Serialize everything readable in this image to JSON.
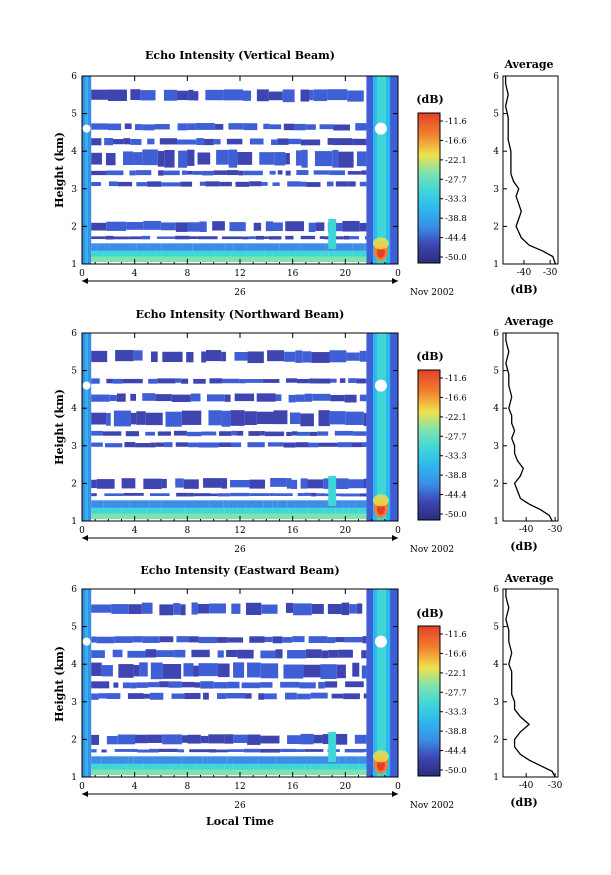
{
  "chart_data": [
    {
      "type": "heatmap",
      "title": "Echo Intensity (Vertical Beam)",
      "ylabel": "Height (km)",
      "xlabel": "",
      "x_ticks": [
        "0",
        "4",
        "8",
        "12",
        "16",
        "20",
        "0"
      ],
      "xlim": [
        0,
        24
      ],
      "ylim": [
        1,
        6
      ],
      "y_ticks": [
        "1",
        "2",
        "3",
        "4",
        "5",
        "6"
      ],
      "date_label": "26",
      "month_label": "Nov 2002",
      "colorbar": {
        "unit": "(dB)",
        "ticks": [
          "-11.6",
          "-16.6",
          "-22.1",
          "-27.7",
          "-33.3",
          "-38.8",
          "-44.4",
          "-50.0"
        ]
      },
      "echo_bands_km": [
        [
          1.1,
          1.35
        ],
        [
          1.35,
          1.55
        ],
        [
          1.65,
          1.75
        ],
        [
          1.85,
          2.15
        ],
        [
          3.05,
          3.2
        ],
        [
          3.35,
          3.5
        ],
        [
          3.55,
          4.05
        ],
        [
          4.15,
          4.35
        ],
        [
          4.55,
          4.75
        ],
        [
          5.3,
          5.65
        ]
      ],
      "average_profile": {
        "title": "Average",
        "xlabel": "(dB)",
        "x_ticks": [
          "-40",
          "-30"
        ],
        "xlim": [
          -48,
          -27
        ],
        "height_km": [
          1.0,
          1.2,
          1.35,
          1.5,
          1.7,
          2.0,
          2.2,
          2.4,
          2.6,
          2.8,
          3.0,
          3.2,
          3.4,
          3.6,
          3.8,
          4.0,
          4.3,
          4.6,
          4.9,
          5.2,
          5.5,
          5.8,
          6.0
        ],
        "db": [
          -28,
          -29,
          -33,
          -38,
          -41,
          -43,
          -42,
          -41,
          -42,
          -43,
          -42,
          -44,
          -45,
          -45,
          -45,
          -45,
          -46,
          -46,
          -46,
          -47,
          -46,
          -47,
          -47
        ]
      }
    },
    {
      "type": "heatmap",
      "title": "Echo Intensity (Northward Beam)",
      "ylabel": "Height (km)",
      "xlabel": "",
      "x_ticks": [
        "0",
        "4",
        "8",
        "12",
        "16",
        "20",
        "0"
      ],
      "xlim": [
        0,
        24
      ],
      "ylim": [
        1,
        6
      ],
      "y_ticks": [
        "1",
        "2",
        "3",
        "4",
        "5",
        "6"
      ],
      "date_label": "26",
      "month_label": "Nov 2002",
      "colorbar": {
        "unit": "(dB)",
        "ticks": [
          "-11.6",
          "-16.6",
          "-22.1",
          "-27.7",
          "-33.3",
          "-38.8",
          "-44.4",
          "-50.0"
        ]
      },
      "echo_bands_km": [
        [
          1.1,
          1.35
        ],
        [
          1.35,
          1.55
        ],
        [
          1.65,
          1.75
        ],
        [
          1.85,
          2.15
        ],
        [
          2.95,
          3.1
        ],
        [
          3.25,
          3.4
        ],
        [
          3.5,
          3.95
        ],
        [
          4.15,
          4.4
        ],
        [
          4.65,
          4.8
        ],
        [
          5.2,
          5.55
        ]
      ],
      "average_profile": {
        "title": "Average",
        "xlabel": "(dB)",
        "x_ticks": [
          "-40",
          "-30"
        ],
        "xlim": [
          -48,
          -29
        ],
        "height_km": [
          1.0,
          1.15,
          1.3,
          1.45,
          1.6,
          1.8,
          2.0,
          2.2,
          2.4,
          2.6,
          2.8,
          3.0,
          3.2,
          3.4,
          3.6,
          3.8,
          4.0,
          4.3,
          4.6,
          4.9,
          5.2,
          5.5,
          5.8,
          6.0
        ],
        "db": [
          -31,
          -32,
          -35,
          -39,
          -42,
          -43,
          -44,
          -42,
          -41,
          -43,
          -44,
          -44,
          -45,
          -44,
          -45,
          -45,
          -46,
          -45,
          -46,
          -46,
          -47,
          -46,
          -47,
          -47
        ]
      }
    },
    {
      "type": "heatmap",
      "title": "Echo Intensity (Eastward Beam)",
      "ylabel": "Height (km)",
      "xlabel": "Local Time",
      "x_ticks": [
        "0",
        "4",
        "8",
        "12",
        "16",
        "20",
        "0"
      ],
      "xlim": [
        0,
        24
      ],
      "ylim": [
        1,
        6
      ],
      "y_ticks": [
        "1",
        "2",
        "3",
        "4",
        "5",
        "6"
      ],
      "date_label": "26",
      "month_label": "Nov 2002",
      "colorbar": {
        "unit": "(dB)",
        "ticks": [
          "-11.6",
          "-16.6",
          "-22.1",
          "-27.7",
          "-33.3",
          "-38.8",
          "-44.4",
          "-50.0"
        ]
      },
      "echo_bands_km": [
        [
          1.1,
          1.35
        ],
        [
          1.35,
          1.55
        ],
        [
          1.65,
          1.75
        ],
        [
          1.85,
          2.15
        ],
        [
          3.05,
          3.25
        ],
        [
          3.35,
          3.55
        ],
        [
          3.6,
          4.05
        ],
        [
          4.15,
          4.4
        ],
        [
          4.55,
          4.75
        ],
        [
          5.3,
          5.65
        ]
      ],
      "average_profile": {
        "title": "Average",
        "xlabel": "(dB)",
        "x_ticks": [
          "-40",
          "-30"
        ],
        "xlim": [
          -48,
          -29
        ],
        "height_km": [
          1.0,
          1.15,
          1.3,
          1.45,
          1.6,
          1.8,
          2.0,
          2.2,
          2.4,
          2.6,
          2.8,
          3.0,
          3.2,
          3.4,
          3.6,
          3.8,
          4.0,
          4.3,
          4.6,
          4.9,
          5.2,
          5.5,
          5.8,
          6.0
        ],
        "db": [
          -30,
          -31,
          -35,
          -39,
          -42,
          -44,
          -44,
          -42,
          -39,
          -42,
          -44,
          -44,
          -45,
          -45,
          -45,
          -45,
          -46,
          -45,
          -46,
          -46,
          -47,
          -46,
          -47,
          -47
        ]
      }
    }
  ],
  "colors": {
    "scale": [
      "#2a2e7a",
      "#3e45b0",
      "#3f5fd6",
      "#3a8ee6",
      "#2fb6ee",
      "#3fd6d8",
      "#7fe2b0",
      "#bde87a",
      "#efe24c",
      "#f6b63a",
      "#f27e2e",
      "#e3402a"
    ],
    "low_echo": "#3e45b0",
    "near_ground": "#3fd6d8"
  }
}
